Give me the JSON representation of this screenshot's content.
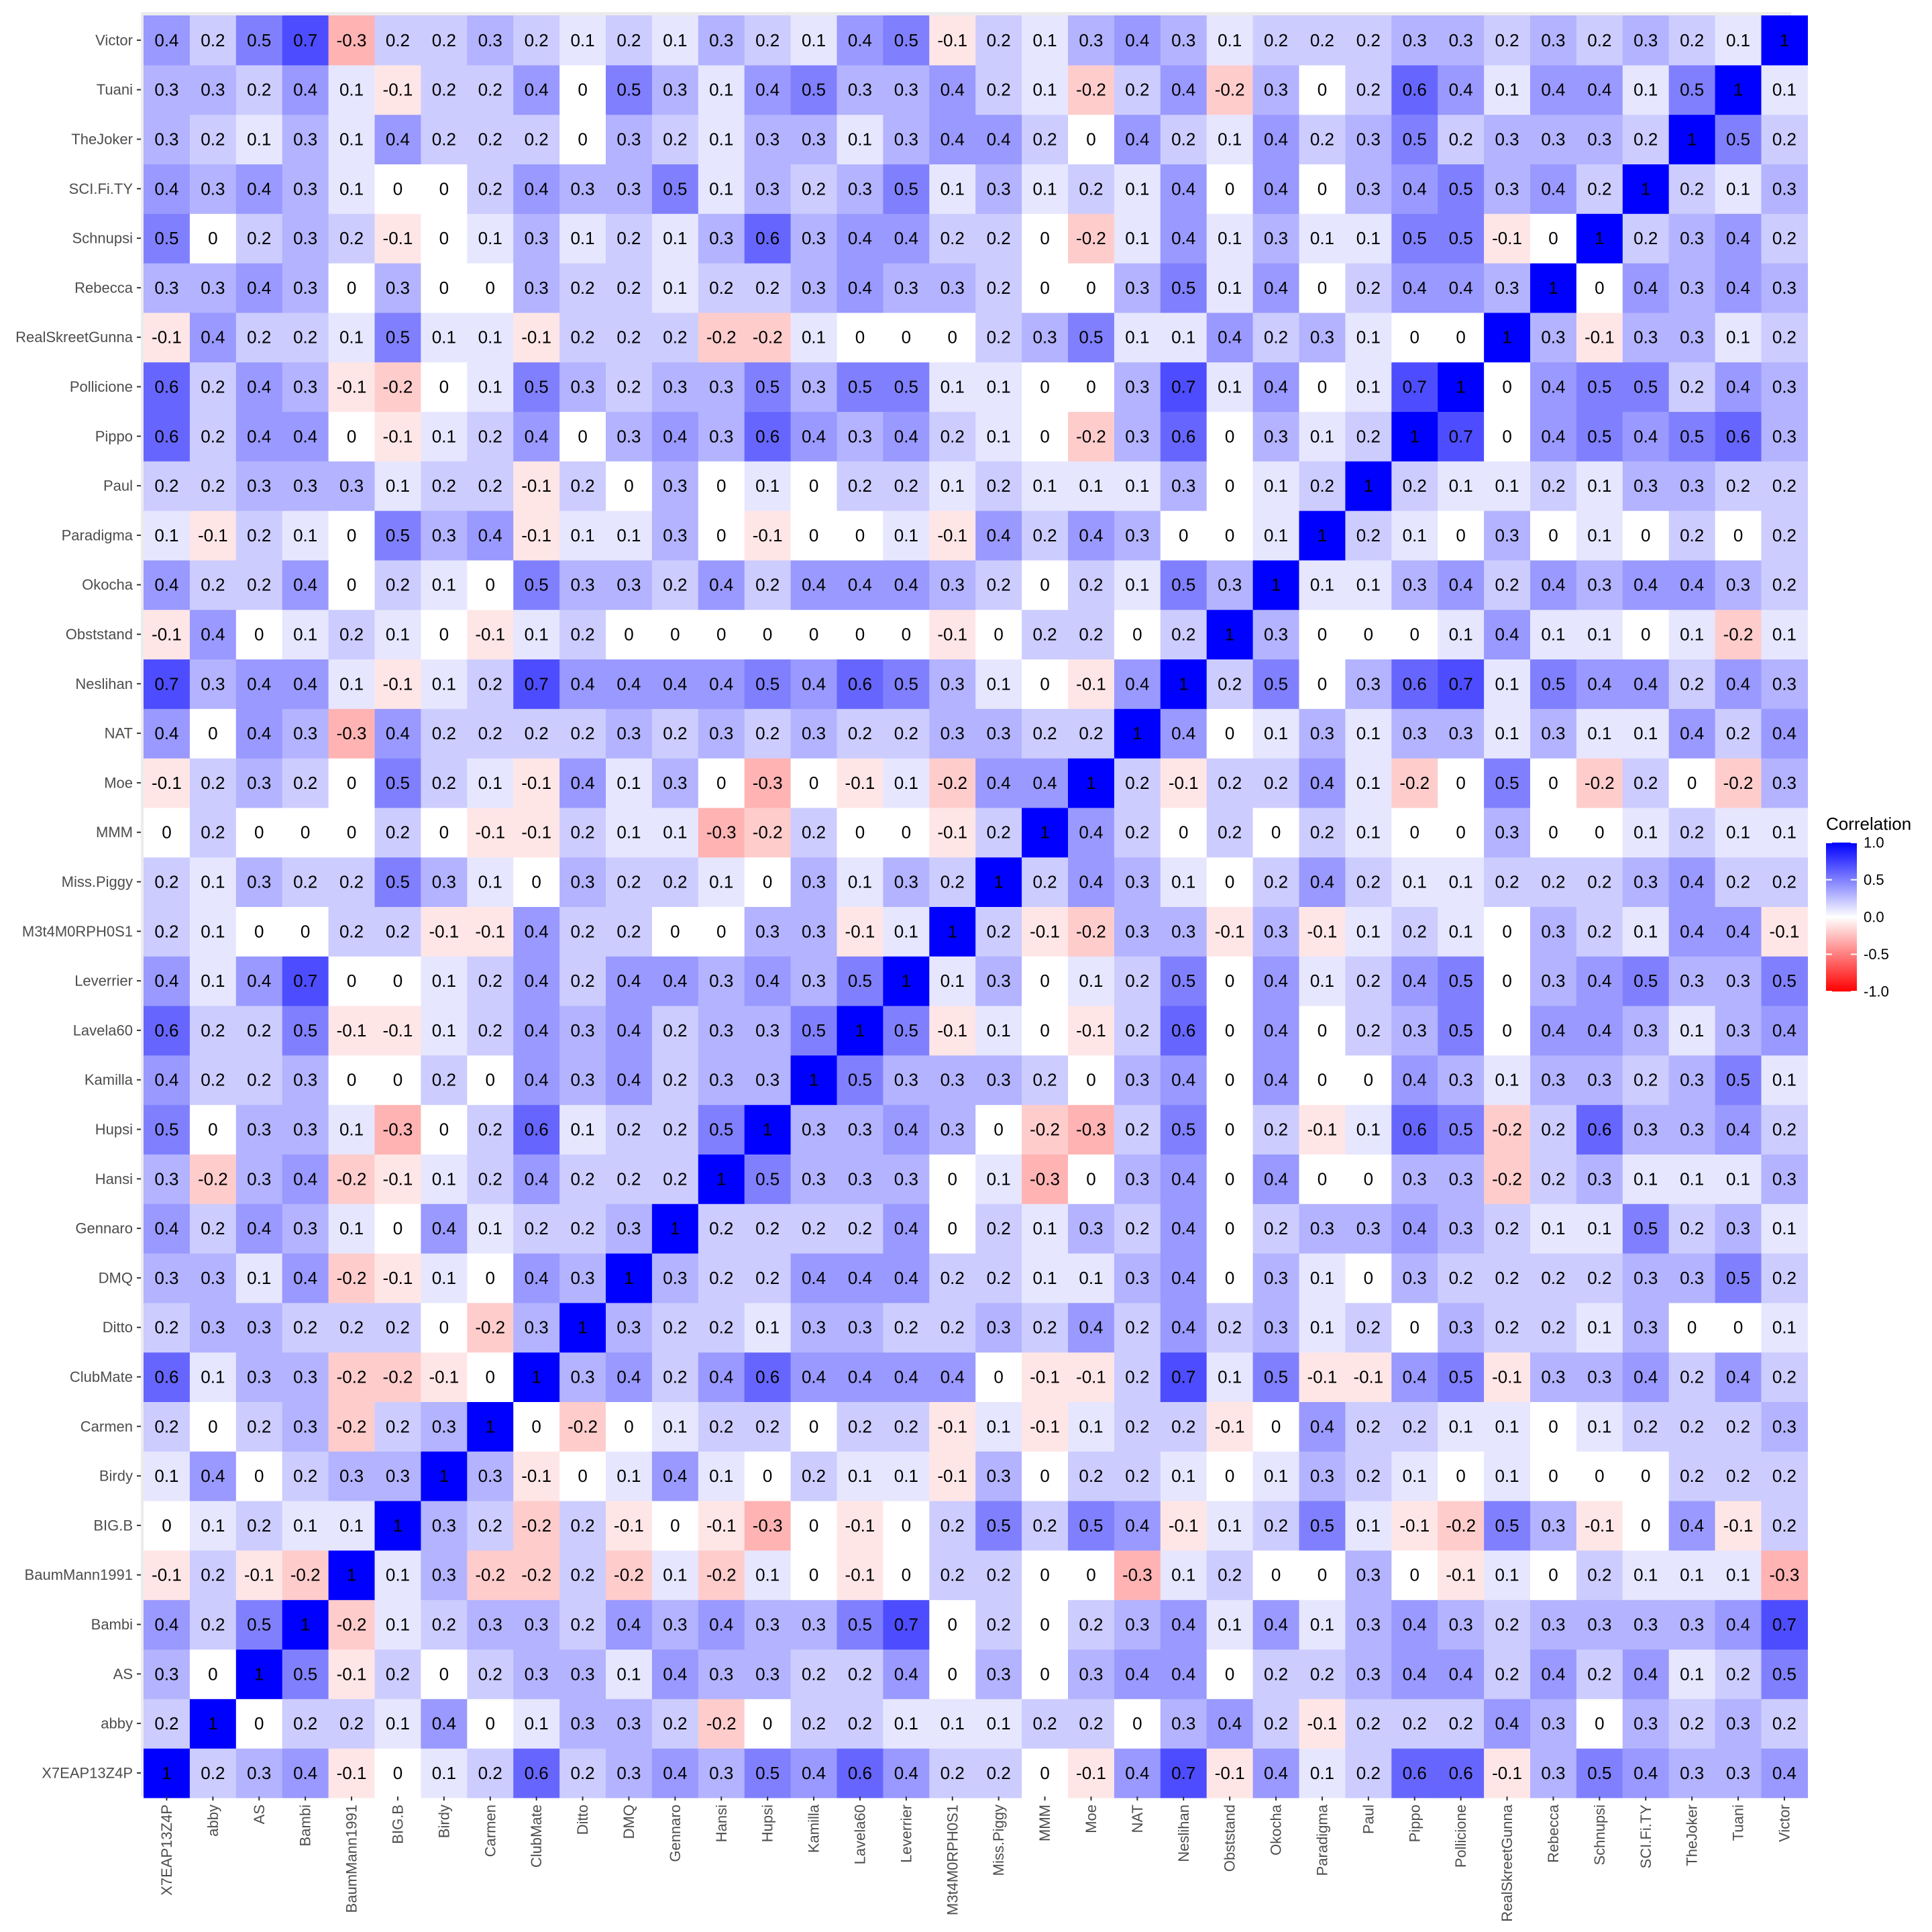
{
  "chart_data": {
    "type": "heatmap",
    "title": "",
    "xlabel": "",
    "ylabel": "",
    "legend": {
      "title": "Correlation",
      "ticks": [
        "1.0",
        "0.5",
        "0.0",
        "-0.5",
        "-1.0"
      ],
      "range": [
        -1,
        1
      ],
      "position": "right",
      "colors": {
        "low": "#ff0000",
        "mid": "#ffffff",
        "high": "#0000ff"
      }
    },
    "labels": [
      "X7EAP13Z4P",
      "abby",
      "AS",
      "Bambi",
      "BaumMann1991",
      "BIG.B",
      "Birdy",
      "Carmen",
      "ClubMate",
      "Ditto",
      "DMQ",
      "Gennaro",
      "Hansi",
      "Hupsi",
      "Kamilla",
      "Lavela60",
      "Leverrier",
      "M3t4M0RPH0S1",
      "Miss.Piggy",
      "MMM",
      "Moe",
      "NAT",
      "Neslihan",
      "Obststand",
      "Okocha",
      "Paradigma",
      "Paul",
      "Pippo",
      "Pollicione",
      "RealSkreetGunna",
      "Rebecca",
      "Schnupsi",
      "SCI.Fi.TY",
      "TheJoker",
      "Tuani",
      "Victor"
    ],
    "matrix": [
      [
        1,
        0.2,
        0.3,
        0.4,
        -0.1,
        0,
        0.1,
        0.2,
        0.6,
        0.2,
        0.3,
        0.4,
        0.3,
        0.5,
        0.4,
        0.6,
        0.4,
        0.2,
        0.2,
        0,
        -0.1,
        0.4,
        0.7,
        -0.1,
        0.4,
        0.1,
        0.2,
        0.6,
        0.6,
        -0.1,
        0.3,
        0.5,
        0.4,
        0.3,
        0.3,
        0.4
      ],
      [
        0.2,
        1,
        0,
        0.2,
        0.2,
        0.1,
        0.4,
        0,
        0.1,
        0.3,
        0.3,
        0.2,
        -0.2,
        0,
        0.2,
        0.2,
        0.1,
        0.1,
        0.1,
        0.2,
        0.2,
        0,
        0.3,
        0.4,
        0.2,
        -0.1,
        0.2,
        0.2,
        0.2,
        0.4,
        0.3,
        0,
        0.3,
        0.2,
        0.3,
        0.2
      ],
      [
        0.3,
        0,
        1,
        0.5,
        -0.1,
        0.2,
        0,
        0.2,
        0.3,
        0.3,
        0.1,
        0.4,
        0.3,
        0.3,
        0.2,
        0.2,
        0.4,
        0,
        0.3,
        0,
        0.3,
        0.4,
        0.4,
        0,
        0.2,
        0.2,
        0.3,
        0.4,
        0.4,
        0.2,
        0.4,
        0.2,
        0.4,
        0.1,
        0.2,
        0.5
      ],
      [
        0.4,
        0.2,
        0.5,
        1,
        -0.2,
        0.1,
        0.2,
        0.3,
        0.3,
        0.2,
        0.4,
        0.3,
        0.4,
        0.3,
        0.3,
        0.5,
        0.7,
        0,
        0.2,
        0,
        0.2,
        0.3,
        0.4,
        0.1,
        0.4,
        0.1,
        0.3,
        0.4,
        0.3,
        0.2,
        0.3,
        0.3,
        0.3,
        0.3,
        0.4,
        0.7
      ],
      [
        -0.1,
        0.2,
        -0.1,
        -0.2,
        1,
        0.1,
        0.3,
        -0.2,
        -0.2,
        0.2,
        -0.2,
        0.1,
        -0.2,
        0.1,
        0,
        -0.1,
        0,
        0.2,
        0.2,
        0,
        0,
        -0.3,
        0.1,
        0.2,
        0,
        0,
        0.3,
        0,
        -0.1,
        0.1,
        0,
        0.2,
        0.1,
        0.1,
        0.1,
        -0.3
      ],
      [
        0,
        0.1,
        0.2,
        0.1,
        0.1,
        1,
        0.3,
        0.2,
        -0.2,
        0.2,
        -0.1,
        0,
        -0.1,
        -0.3,
        0,
        -0.1,
        0,
        0.2,
        0.5,
        0.2,
        0.5,
        0.4,
        -0.1,
        0.1,
        0.2,
        0.5,
        0.1,
        -0.1,
        -0.2,
        0.5,
        0.3,
        -0.1,
        0,
        0.4,
        -0.1,
        0.2
      ],
      [
        0.1,
        0.4,
        0,
        0.2,
        0.3,
        0.3,
        1,
        0.3,
        -0.1,
        0,
        0.1,
        0.4,
        0.1,
        0,
        0.2,
        0.1,
        0.1,
        -0.1,
        0.3,
        0,
        0.2,
        0.2,
        0.1,
        0,
        0.1,
        0.3,
        0.2,
        0.1,
        0,
        0.1,
        0,
        0,
        0,
        0.2,
        0.2,
        0.2
      ],
      [
        0.2,
        0,
        0.2,
        0.3,
        -0.2,
        0.2,
        0.3,
        1,
        0,
        -0.2,
        0,
        0.1,
        0.2,
        0.2,
        0,
        0.2,
        0.2,
        -0.1,
        0.1,
        -0.1,
        0.1,
        0.2,
        0.2,
        -0.1,
        0,
        0.4,
        0.2,
        0.2,
        0.1,
        0.1,
        0,
        0.1,
        0.2,
        0.2,
        0.2,
        0.3
      ],
      [
        0.6,
        0.1,
        0.3,
        0.3,
        -0.2,
        -0.2,
        -0.1,
        0,
        1,
        0.3,
        0.4,
        0.2,
        0.4,
        0.6,
        0.4,
        0.4,
        0.4,
        0.4,
        0,
        -0.1,
        -0.1,
        0.2,
        0.7,
        0.1,
        0.5,
        -0.1,
        -0.1,
        0.4,
        0.5,
        -0.1,
        0.3,
        0.3,
        0.4,
        0.2,
        0.4,
        0.2
      ],
      [
        0.2,
        0.3,
        0.3,
        0.2,
        0.2,
        0.2,
        0,
        -0.2,
        0.3,
        1,
        0.3,
        0.2,
        0.2,
        0.1,
        0.3,
        0.3,
        0.2,
        0.2,
        0.3,
        0.2,
        0.4,
        0.2,
        0.4,
        0.2,
        0.3,
        0.1,
        0.2,
        0,
        0.3,
        0.2,
        0.2,
        0.1,
        0.3,
        0,
        0,
        0.1
      ],
      [
        0.3,
        0.3,
        0.1,
        0.4,
        -0.2,
        -0.1,
        0.1,
        0,
        0.4,
        0.3,
        1,
        0.3,
        0.2,
        0.2,
        0.4,
        0.4,
        0.4,
        0.2,
        0.2,
        0.1,
        0.1,
        0.3,
        0.4,
        0,
        0.3,
        0.1,
        0,
        0.3,
        0.2,
        0.2,
        0.2,
        0.2,
        0.3,
        0.3,
        0.5,
        0.2
      ],
      [
        0.4,
        0.2,
        0.4,
        0.3,
        0.1,
        0,
        0.4,
        0.1,
        0.2,
        0.2,
        0.3,
        1,
        0.2,
        0.2,
        0.2,
        0.2,
        0.4,
        0,
        0.2,
        0.1,
        0.3,
        0.2,
        0.4,
        0,
        0.2,
        0.3,
        0.3,
        0.4,
        0.3,
        0.2,
        0.1,
        0.1,
        0.5,
        0.2,
        0.3,
        0.1
      ],
      [
        0.3,
        -0.2,
        0.3,
        0.4,
        -0.2,
        -0.1,
        0.1,
        0.2,
        0.4,
        0.2,
        0.2,
        0.2,
        1,
        0.5,
        0.3,
        0.3,
        0.3,
        0,
        0.1,
        -0.3,
        0,
        0.3,
        0.4,
        0,
        0.4,
        0,
        0,
        0.3,
        0.3,
        -0.2,
        0.2,
        0.3,
        0.1,
        0.1,
        0.1,
        0.3
      ],
      [
        0.5,
        0,
        0.3,
        0.3,
        0.1,
        -0.3,
        0,
        0.2,
        0.6,
        0.1,
        0.2,
        0.2,
        0.5,
        1,
        0.3,
        0.3,
        0.4,
        0.3,
        0,
        -0.2,
        -0.3,
        0.2,
        0.5,
        0,
        0.2,
        -0.1,
        0.1,
        0.6,
        0.5,
        -0.2,
        0.2,
        0.6,
        0.3,
        0.3,
        0.4,
        0.2
      ],
      [
        0.4,
        0.2,
        0.2,
        0.3,
        0,
        0,
        0.2,
        0,
        0.4,
        0.3,
        0.4,
        0.2,
        0.3,
        0.3,
        1,
        0.5,
        0.3,
        0.3,
        0.3,
        0.2,
        0,
        0.3,
        0.4,
        0,
        0.4,
        0,
        0,
        0.4,
        0.3,
        0.1,
        0.3,
        0.3,
        0.2,
        0.3,
        0.5,
        0.1
      ],
      [
        0.6,
        0.2,
        0.2,
        0.5,
        -0.1,
        -0.1,
        0.1,
        0.2,
        0.4,
        0.3,
        0.4,
        0.2,
        0.3,
        0.3,
        0.5,
        1,
        0.5,
        -0.1,
        0.1,
        0,
        -0.1,
        0.2,
        0.6,
        0,
        0.4,
        0,
        0.2,
        0.3,
        0.5,
        0,
        0.4,
        0.4,
        0.3,
        0.1,
        0.3,
        0.4
      ],
      [
        0.4,
        0.1,
        0.4,
        0.7,
        0,
        0,
        0.1,
        0.2,
        0.4,
        0.2,
        0.4,
        0.4,
        0.3,
        0.4,
        0.3,
        0.5,
        1,
        0.1,
        0.3,
        0,
        0.1,
        0.2,
        0.5,
        0,
        0.4,
        0.1,
        0.2,
        0.4,
        0.5,
        0,
        0.3,
        0.4,
        0.5,
        0.3,
        0.3,
        0.5
      ],
      [
        0.2,
        0.1,
        0,
        0,
        0.2,
        0.2,
        -0.1,
        -0.1,
        0.4,
        0.2,
        0.2,
        0,
        0,
        0.3,
        0.3,
        -0.1,
        0.1,
        1,
        0.2,
        -0.1,
        -0.2,
        0.3,
        0.3,
        -0.1,
        0.3,
        -0.1,
        0.1,
        0.2,
        0.1,
        0,
        0.3,
        0.2,
        0.1,
        0.4,
        0.4,
        -0.1
      ],
      [
        0.2,
        0.1,
        0.3,
        0.2,
        0.2,
        0.5,
        0.3,
        0.1,
        0,
        0.3,
        0.2,
        0.2,
        0.1,
        0,
        0.3,
        0.1,
        0.3,
        0.2,
        1,
        0.2,
        0.4,
        0.3,
        0.1,
        0,
        0.2,
        0.4,
        0.2,
        0.1,
        0.1,
        0.2,
        0.2,
        0.2,
        0.3,
        0.4,
        0.2,
        0.2
      ],
      [
        0,
        0.2,
        0,
        0,
        0,
        0.2,
        0,
        -0.1,
        -0.1,
        0.2,
        0.1,
        0.1,
        -0.3,
        -0.2,
        0.2,
        0,
        0,
        -0.1,
        0.2,
        1,
        0.4,
        0.2,
        0,
        0.2,
        0,
        0.2,
        0.1,
        0,
        0,
        0.3,
        0,
        0,
        0.1,
        0.2,
        0.1,
        0.1
      ],
      [
        -0.1,
        0.2,
        0.3,
        0.2,
        0,
        0.5,
        0.2,
        0.1,
        -0.1,
        0.4,
        0.1,
        0.3,
        0,
        -0.3,
        0,
        -0.1,
        0.1,
        -0.2,
        0.4,
        0.4,
        1,
        0.2,
        -0.1,
        0.2,
        0.2,
        0.4,
        0.1,
        -0.2,
        0,
        0.5,
        0,
        -0.2,
        0.2,
        0,
        -0.2,
        0.3
      ],
      [
        0.4,
        0,
        0.4,
        0.3,
        -0.3,
        0.4,
        0.2,
        0.2,
        0.2,
        0.2,
        0.3,
        0.2,
        0.3,
        0.2,
        0.3,
        0.2,
        0.2,
        0.3,
        0.3,
        0.2,
        0.2,
        1,
        0.4,
        0,
        0.1,
        0.3,
        0.1,
        0.3,
        0.3,
        0.1,
        0.3,
        0.1,
        0.1,
        0.4,
        0.2,
        0.4
      ],
      [
        0.7,
        0.3,
        0.4,
        0.4,
        0.1,
        -0.1,
        0.1,
        0.2,
        0.7,
        0.4,
        0.4,
        0.4,
        0.4,
        0.5,
        0.4,
        0.6,
        0.5,
        0.3,
        0.1,
        0,
        -0.1,
        0.4,
        1,
        0.2,
        0.5,
        0,
        0.3,
        0.6,
        0.7,
        0.1,
        0.5,
        0.4,
        0.4,
        0.2,
        0.4,
        0.3
      ],
      [
        -0.1,
        0.4,
        0,
        0.1,
        0.2,
        0.1,
        0,
        -0.1,
        0.1,
        0.2,
        0,
        0,
        0,
        0,
        0,
        0,
        0,
        -0.1,
        0,
        0.2,
        0.2,
        0,
        0.2,
        1,
        0.3,
        0,
        0,
        0,
        0.1,
        0.4,
        0.1,
        0.1,
        0,
        0.1,
        -0.2,
        0.1
      ],
      [
        0.4,
        0.2,
        0.2,
        0.4,
        0,
        0.2,
        0.1,
        0,
        0.5,
        0.3,
        0.3,
        0.2,
        0.4,
        0.2,
        0.4,
        0.4,
        0.4,
        0.3,
        0.2,
        0,
        0.2,
        0.1,
        0.5,
        0.3,
        1,
        0.1,
        0.1,
        0.3,
        0.4,
        0.2,
        0.4,
        0.3,
        0.4,
        0.4,
        0.3,
        0.2
      ],
      [
        0.1,
        -0.1,
        0.2,
        0.1,
        0,
        0.5,
        0.3,
        0.4,
        -0.1,
        0.1,
        0.1,
        0.3,
        0,
        -0.1,
        0,
        0,
        0.1,
        -0.1,
        0.4,
        0.2,
        0.4,
        0.3,
        0,
        0,
        0.1,
        1,
        0.2,
        0.1,
        0,
        0.3,
        0,
        0.1,
        0,
        0.2,
        0,
        0.2
      ],
      [
        0.2,
        0.2,
        0.3,
        0.3,
        0.3,
        0.1,
        0.2,
        0.2,
        -0.1,
        0.2,
        0,
        0.3,
        0,
        0.1,
        0,
        0.2,
        0.2,
        0.1,
        0.2,
        0.1,
        0.1,
        0.1,
        0.3,
        0,
        0.1,
        0.2,
        1,
        0.2,
        0.1,
        0.1,
        0.2,
        0.1,
        0.3,
        0.3,
        0.2,
        0.2
      ],
      [
        0.6,
        0.2,
        0.4,
        0.4,
        0,
        -0.1,
        0.1,
        0.2,
        0.4,
        0,
        0.3,
        0.4,
        0.3,
        0.6,
        0.4,
        0.3,
        0.4,
        0.2,
        0.1,
        0,
        -0.2,
        0.3,
        0.6,
        0,
        0.3,
        0.1,
        0.2,
        1,
        0.7,
        0,
        0.4,
        0.5,
        0.4,
        0.5,
        0.6,
        0.3
      ],
      [
        0.6,
        0.2,
        0.4,
        0.3,
        -0.1,
        -0.2,
        0,
        0.1,
        0.5,
        0.3,
        0.2,
        0.3,
        0.3,
        0.5,
        0.3,
        0.5,
        0.5,
        0.1,
        0.1,
        0,
        0,
        0.3,
        0.7,
        0.1,
        0.4,
        0,
        0.1,
        0.7,
        1,
        0,
        0.4,
        0.5,
        0.5,
        0.2,
        0.4,
        0.3
      ],
      [
        -0.1,
        0.4,
        0.2,
        0.2,
        0.1,
        0.5,
        0.1,
        0.1,
        -0.1,
        0.2,
        0.2,
        0.2,
        -0.2,
        -0.2,
        0.1,
        0,
        0,
        0,
        0.2,
        0.3,
        0.5,
        0.1,
        0.1,
        0.4,
        0.2,
        0.3,
        0.1,
        0,
        0,
        1,
        0.3,
        -0.1,
        0.3,
        0.3,
        0.1,
        0.2
      ],
      [
        0.3,
        0.3,
        0.4,
        0.3,
        0,
        0.3,
        0,
        0,
        0.3,
        0.2,
        0.2,
        0.1,
        0.2,
        0.2,
        0.3,
        0.4,
        0.3,
        0.3,
        0.2,
        0,
        0,
        0.3,
        0.5,
        0.1,
        0.4,
        0,
        0.2,
        0.4,
        0.4,
        0.3,
        1,
        0,
        0.4,
        0.3,
        0.4,
        0.3
      ],
      [
        0.5,
        0,
        0.2,
        0.3,
        0.2,
        -0.1,
        0,
        0.1,
        0.3,
        0.1,
        0.2,
        0.1,
        0.3,
        0.6,
        0.3,
        0.4,
        0.4,
        0.2,
        0.2,
        0,
        -0.2,
        0.1,
        0.4,
        0.1,
        0.3,
        0.1,
        0.1,
        0.5,
        0.5,
        -0.1,
        0,
        1,
        0.2,
        0.3,
        0.4,
        0.2
      ],
      [
        0.4,
        0.3,
        0.4,
        0.3,
        0.1,
        0,
        0,
        0.2,
        0.4,
        0.3,
        0.3,
        0.5,
        0.1,
        0.3,
        0.2,
        0.3,
        0.5,
        0.1,
        0.3,
        0.1,
        0.2,
        0.1,
        0.4,
        0,
        0.4,
        0,
        0.3,
        0.4,
        0.5,
        0.3,
        0.4,
        0.2,
        1,
        0.2,
        0.1,
        0.3
      ],
      [
        0.3,
        0.2,
        0.1,
        0.3,
        0.1,
        0.4,
        0.2,
        0.2,
        0.2,
        0,
        0.3,
        0.2,
        0.1,
        0.3,
        0.3,
        0.1,
        0.3,
        0.4,
        0.4,
        0.2,
        0,
        0.4,
        0.2,
        0.1,
        0.4,
        0.2,
        0.3,
        0.5,
        0.2,
        0.3,
        0.3,
        0.3,
        0.2,
        1,
        0.5,
        0.2
      ],
      [
        0.3,
        0.3,
        0.2,
        0.4,
        0.1,
        -0.1,
        0.2,
        0.2,
        0.4,
        0,
        0.5,
        0.3,
        0.1,
        0.4,
        0.5,
        0.3,
        0.3,
        0.4,
        0.2,
        0.1,
        -0.2,
        0.2,
        0.4,
        -0.2,
        0.3,
        0,
        0.2,
        0.6,
        0.4,
        0.1,
        0.4,
        0.4,
        0.1,
        0.5,
        1,
        0.1
      ],
      [
        0.4,
        0.2,
        0.5,
        0.7,
        -0.3,
        0.2,
        0.2,
        0.3,
        0.2,
        0.1,
        0.2,
        0.1,
        0.3,
        0.2,
        0.1,
        0.4,
        0.5,
        -0.1,
        0.2,
        0.1,
        0.3,
        0.4,
        0.3,
        0.1,
        0.2,
        0.2,
        0.2,
        0.3,
        0.3,
        0.2,
        0.3,
        0.2,
        0.3,
        0.2,
        0.1,
        1
      ]
    ]
  }
}
